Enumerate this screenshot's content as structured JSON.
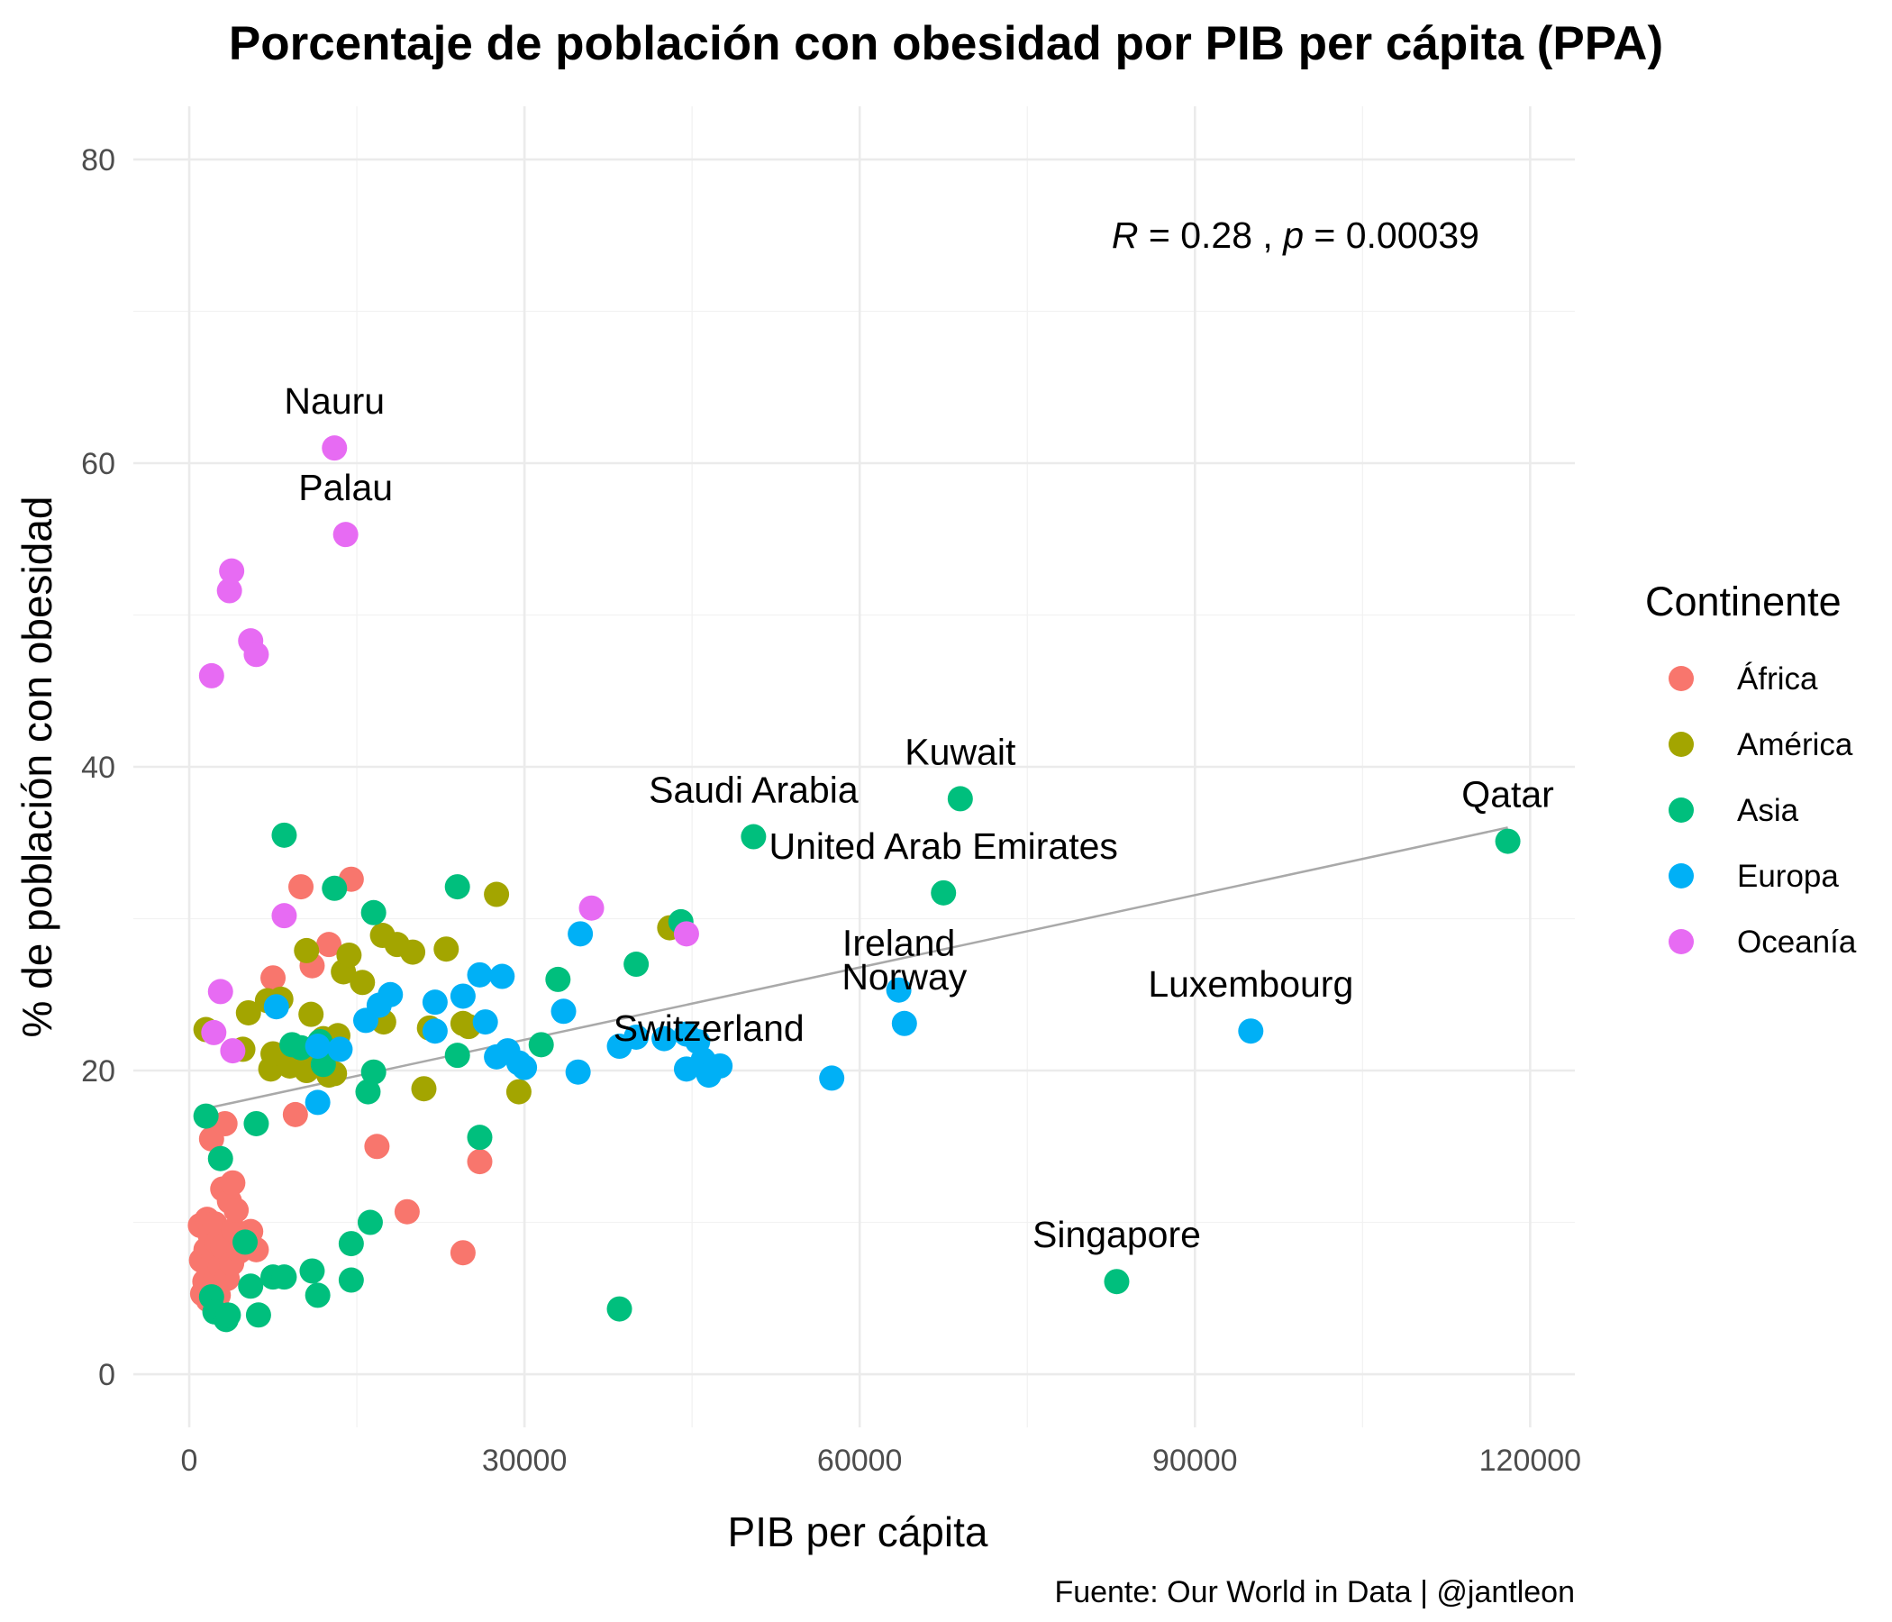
{
  "chart_data": {
    "type": "scatter",
    "title": "Porcentaje de población con obesidad por PIB per cápita (PPA)",
    "xlabel": "PIB per cápita",
    "ylabel": "% de población con obesidad",
    "xlim": [
      -5000,
      124000
    ],
    "ylim": [
      -3.5,
      83.5
    ],
    "x_ticks": [
      "0",
      "30000",
      "60000",
      "90000",
      "120000"
    ],
    "x_tick_values": [
      0,
      30000,
      60000,
      90000,
      120000
    ],
    "y_ticks": [
      "0",
      "20",
      "40",
      "60",
      "80"
    ],
    "y_tick_values": [
      0,
      20,
      40,
      60,
      80
    ],
    "grid": true,
    "annotation": {
      "r_symbol": "R",
      "r_text": " = 0.28 , ",
      "p_symbol": "p",
      "p_text": " = 0.00039",
      "x": 99000,
      "y": 75
    },
    "trend_line": {
      "x": [
        1500,
        118000
      ],
      "y": [
        17.5,
        36.0
      ]
    },
    "legend": {
      "title": "Continente",
      "placement": "right",
      "items": [
        {
          "label": "África",
          "color": "#F8766D"
        },
        {
          "label": "América",
          "color": "#A3A500"
        },
        {
          "label": "Asia",
          "color": "#00BF7D"
        },
        {
          "label": "Europa",
          "color": "#00B0F6"
        },
        {
          "label": "Oceanía",
          "color": "#E76BF3"
        }
      ]
    },
    "series": [
      {
        "name": "África",
        "color": "#F8766D",
        "points": [
          [
            1000,
            9.8
          ],
          [
            1100,
            7.5
          ],
          [
            1200,
            5.3
          ],
          [
            1400,
            6.1
          ],
          [
            1500,
            8.2
          ],
          [
            1600,
            10.2
          ],
          [
            1700,
            4.9
          ],
          [
            1800,
            6.8
          ],
          [
            1900,
            9.1
          ],
          [
            2000,
            15.5
          ],
          [
            2000,
            5.6
          ],
          [
            2200,
            7.8
          ],
          [
            2300,
            9.9
          ],
          [
            2400,
            6.4
          ],
          [
            2500,
            8.7
          ],
          [
            2600,
            5.2
          ],
          [
            2800,
            7.1
          ],
          [
            3000,
            12.2
          ],
          [
            3000,
            8.4
          ],
          [
            3200,
            16.5
          ],
          [
            3400,
            6.3
          ],
          [
            3600,
            11.4
          ],
          [
            3800,
            7.3
          ],
          [
            3900,
            12.6
          ],
          [
            4000,
            9.5
          ],
          [
            4200,
            10.8
          ],
          [
            4500,
            8.1
          ],
          [
            5500,
            9.4
          ],
          [
            6000,
            8.2
          ],
          [
            7500,
            26.1
          ],
          [
            9500,
            17.1
          ],
          [
            10000,
            32.1
          ],
          [
            11000,
            26.9
          ],
          [
            12500,
            28.3
          ],
          [
            14500,
            32.6
          ],
          [
            16800,
            15.0
          ],
          [
            19500,
            10.7
          ],
          [
            24500,
            8.0
          ],
          [
            26000,
            14.0
          ]
        ]
      },
      {
        "name": "América",
        "color": "#A3A500",
        "points": [
          [
            1500,
            22.7
          ],
          [
            4800,
            21.4
          ],
          [
            5300,
            23.8
          ],
          [
            7000,
            24.6
          ],
          [
            7300,
            20.1
          ],
          [
            7500,
            21.1
          ],
          [
            8200,
            24.7
          ],
          [
            8500,
            21.0
          ],
          [
            9000,
            20.3
          ],
          [
            10500,
            27.9
          ],
          [
            10500,
            20.0
          ],
          [
            10900,
            23.7
          ],
          [
            11500,
            20.5
          ],
          [
            12000,
            22.1
          ],
          [
            12500,
            19.7
          ],
          [
            13000,
            19.8
          ],
          [
            13300,
            22.3
          ],
          [
            13800,
            26.5
          ],
          [
            14300,
            27.6
          ],
          [
            15500,
            25.8
          ],
          [
            17300,
            28.9
          ],
          [
            17400,
            23.2
          ],
          [
            18600,
            28.3
          ],
          [
            20000,
            27.8
          ],
          [
            21000,
            18.8
          ],
          [
            21500,
            22.8
          ],
          [
            23000,
            28.0
          ],
          [
            24500,
            23.1
          ],
          [
            25000,
            22.9
          ],
          [
            27500,
            31.6
          ],
          [
            29500,
            18.6
          ],
          [
            43000,
            29.4
          ]
        ]
      },
      {
        "name": "Asia",
        "color": "#00BF7D",
        "points": [
          [
            1500,
            17.0
          ],
          [
            2000,
            5.1
          ],
          [
            2300,
            4.1
          ],
          [
            2800,
            14.2
          ],
          [
            3300,
            3.6
          ],
          [
            3500,
            3.9
          ],
          [
            5000,
            8.7
          ],
          [
            5500,
            5.8
          ],
          [
            6000,
            16.5
          ],
          [
            6200,
            3.9
          ],
          [
            7500,
            6.4
          ],
          [
            8500,
            6.4
          ],
          [
            8500,
            35.5
          ],
          [
            9200,
            21.7
          ],
          [
            10000,
            21.5
          ],
          [
            11000,
            6.8
          ],
          [
            11500,
            5.2
          ],
          [
            11700,
            21.9
          ],
          [
            12000,
            20.4
          ],
          [
            13000,
            32.0
          ],
          [
            14500,
            8.6
          ],
          [
            14500,
            6.2
          ],
          [
            16000,
            18.6
          ],
          [
            16200,
            10.0
          ],
          [
            16500,
            19.9
          ],
          [
            16500,
            30.4
          ],
          [
            24000,
            21.0
          ],
          [
            24000,
            32.1
          ],
          [
            26000,
            15.6
          ],
          [
            31500,
            21.7
          ],
          [
            33000,
            26.0
          ],
          [
            38500,
            4.3
          ],
          [
            40000,
            27.0
          ],
          [
            44000,
            29.8
          ],
          [
            50500,
            35.4
          ],
          [
            67500,
            31.7
          ],
          [
            69000,
            37.9
          ],
          [
            83000,
            6.1
          ],
          [
            118000,
            35.1
          ]
        ]
      },
      {
        "name": "Europa",
        "color": "#00B0F6",
        "points": [
          [
            7800,
            24.2
          ],
          [
            11500,
            21.6
          ],
          [
            11500,
            17.9
          ],
          [
            13500,
            21.4
          ],
          [
            15800,
            23.3
          ],
          [
            17000,
            24.3
          ],
          [
            18000,
            25.0
          ],
          [
            22000,
            22.6
          ],
          [
            22000,
            24.5
          ],
          [
            24500,
            24.9
          ],
          [
            26000,
            26.3
          ],
          [
            26500,
            23.2
          ],
          [
            27500,
            20.9
          ],
          [
            28000,
            26.2
          ],
          [
            28500,
            21.3
          ],
          [
            29500,
            20.5
          ],
          [
            30000,
            20.2
          ],
          [
            33500,
            23.9
          ],
          [
            34800,
            19.9
          ],
          [
            35000,
            29.0
          ],
          [
            38500,
            21.6
          ],
          [
            40000,
            22.2
          ],
          [
            42500,
            22.1
          ],
          [
            44500,
            22.4
          ],
          [
            44500,
            20.1
          ],
          [
            45500,
            21.9
          ],
          [
            46000,
            20.7
          ],
          [
            46500,
            19.7
          ],
          [
            47500,
            20.3
          ],
          [
            57500,
            19.5
          ],
          [
            63500,
            25.3
          ],
          [
            64000,
            23.1
          ],
          [
            95000,
            22.6
          ]
        ]
      },
      {
        "name": "Oceanía",
        "color": "#E76BF3",
        "points": [
          [
            2000,
            46.0
          ],
          [
            2200,
            22.5
          ],
          [
            2800,
            25.2
          ],
          [
            3600,
            51.6
          ],
          [
            3800,
            52.9
          ],
          [
            3900,
            21.3
          ],
          [
            5500,
            48.3
          ],
          [
            6000,
            47.4
          ],
          [
            8500,
            30.2
          ],
          [
            13000,
            61.0
          ],
          [
            14000,
            55.3
          ],
          [
            36000,
            30.7
          ],
          [
            44500,
            29.0
          ]
        ]
      }
    ],
    "point_labels": [
      {
        "text": "Nauru",
        "x": 13000,
        "y": 61.0
      },
      {
        "text": "Palau",
        "x": 14000,
        "y": 55.3
      },
      {
        "text": "Kuwait",
        "x": 69000,
        "y": 37.9
      },
      {
        "text": "Saudi Arabia",
        "x": 50500,
        "y": 35.4
      },
      {
        "text": "Qatar",
        "x": 118000,
        "y": 35.1
      },
      {
        "text": "United Arab Emirates",
        "x": 67500,
        "y": 31.7
      },
      {
        "text": "Luxembourg",
        "x": 95000,
        "y": 22.6
      },
      {
        "text": "Ireland",
        "x": 63500,
        "y": 25.3
      },
      {
        "text": "Norway",
        "x": 64000,
        "y": 23.1
      },
      {
        "text": "Switzerland",
        "x": 46500,
        "y": 19.7
      },
      {
        "text": "Singapore",
        "x": 83000,
        "y": 6.1
      }
    ],
    "caption": "Fuente: Our World in Data | @jantleon"
  }
}
